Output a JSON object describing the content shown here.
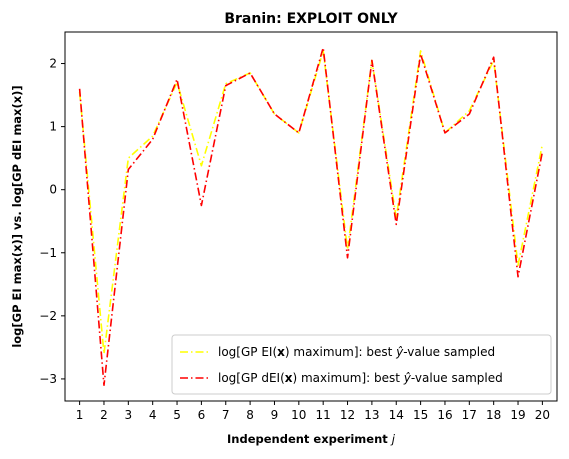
{
  "chart_data": {
    "type": "line",
    "title": "Branin: EXPLOIT ONLY",
    "xlabel": "Independent experiment j",
    "ylabel": "log[GP EI max(x)] vs. log[GP dEI max(x)]",
    "x": [
      1,
      2,
      3,
      4,
      5,
      6,
      7,
      8,
      9,
      10,
      11,
      12,
      13,
      14,
      15,
      16,
      17,
      18,
      19,
      20
    ],
    "xlim": [
      0.4,
      20.6
    ],
    "ylim": [
      -3.35,
      2.5
    ],
    "yticks": [
      -3,
      -2,
      -1,
      0,
      1,
      2
    ],
    "ytick_labels": [
      "−3",
      "−2",
      "−1",
      "0",
      "1",
      "2"
    ],
    "grid": false,
    "legend_position": "lower right",
    "series": [
      {
        "name": "log[GP EI(x) maximum]: best ŷ-value sampled",
        "color": "#ffff00",
        "linestyle": "dashdot",
        "values": [
          1.55,
          -2.6,
          0.5,
          0.85,
          1.7,
          0.38,
          1.68,
          1.85,
          1.2,
          0.9,
          2.2,
          -0.95,
          2.05,
          -0.45,
          2.2,
          0.9,
          1.25,
          2.05,
          -1.2,
          0.72
        ]
      },
      {
        "name": "log[GP dEI(x) maximum]: best ŷ-value sampled",
        "color": "#ff0000",
        "linestyle": "dashdot",
        "values": [
          1.6,
          -3.1,
          0.32,
          0.8,
          1.75,
          -0.25,
          1.65,
          1.85,
          1.2,
          0.9,
          2.25,
          -1.08,
          2.05,
          -0.55,
          2.15,
          0.9,
          1.2,
          2.1,
          -1.38,
          0.6
        ]
      }
    ]
  }
}
